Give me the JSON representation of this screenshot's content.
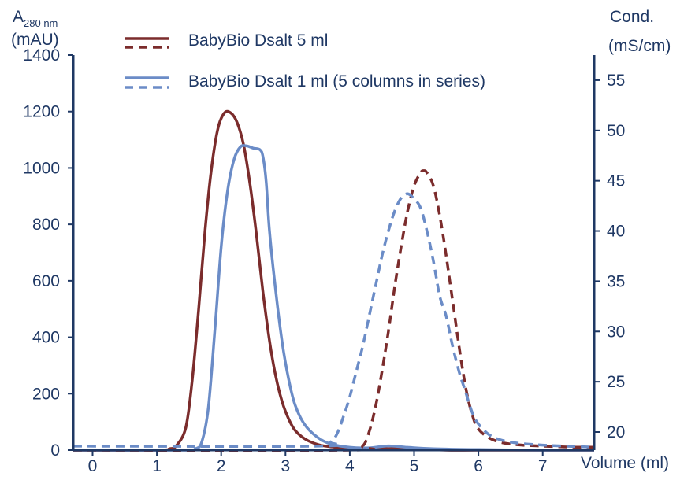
{
  "chart_data": {
    "type": "line",
    "title": "",
    "xlabel": "Volume (ml)",
    "ylabel_left": {
      "main": "A",
      "subscript": "280 nm",
      "unit": "(mAU)"
    },
    "ylabel_right": {
      "main": "Cond.",
      "unit": "(mS/cm)"
    },
    "xlim": [
      -0.3,
      7.8
    ],
    "ylim_left": [
      0,
      1400
    ],
    "ylim_right": [
      18.2,
      57.5
    ],
    "x_ticks": [
      0,
      1,
      2,
      3,
      4,
      5,
      6,
      7
    ],
    "y_left_ticks": [
      0,
      200,
      400,
      600,
      800,
      1000,
      1200,
      1400
    ],
    "y_right_ticks": [
      20,
      25,
      30,
      35,
      40,
      45,
      50,
      55
    ],
    "grid": false,
    "legend_position": "top-center",
    "legend": [
      {
        "label": "BabyBio Dsalt 5 ml",
        "color": "#7b2c2c"
      },
      {
        "label": "BabyBio Dsalt 1 ml (5 columns in series)",
        "color": "#6b8cc7"
      }
    ],
    "series": [
      {
        "group": "BabyBio Dsalt 5 ml",
        "measure": "A280",
        "axis": "left",
        "style": "solid",
        "color": "#7b2c2c",
        "points": [
          [
            -0.3,
            0
          ],
          [
            1.0,
            0
          ],
          [
            1.2,
            5
          ],
          [
            1.3,
            15
          ],
          [
            1.45,
            80
          ],
          [
            1.55,
            250
          ],
          [
            1.65,
            500
          ],
          [
            1.75,
            780
          ],
          [
            1.85,
            1000
          ],
          [
            1.95,
            1140
          ],
          [
            2.05,
            1195
          ],
          [
            2.15,
            1195
          ],
          [
            2.25,
            1160
          ],
          [
            2.35,
            1080
          ],
          [
            2.45,
            940
          ],
          [
            2.55,
            760
          ],
          [
            2.65,
            560
          ],
          [
            2.75,
            390
          ],
          [
            2.85,
            260
          ],
          [
            2.95,
            170
          ],
          [
            3.05,
            110
          ],
          [
            3.15,
            70
          ],
          [
            3.3,
            40
          ],
          [
            3.5,
            20
          ],
          [
            3.7,
            12
          ],
          [
            4.0,
            6
          ],
          [
            4.5,
            5
          ],
          [
            5.0,
            5
          ],
          [
            5.5,
            0
          ],
          [
            6.0,
            0
          ],
          [
            7.0,
            0
          ],
          [
            7.8,
            0
          ]
        ]
      },
      {
        "group": "BabyBio Dsalt 1 ml (5 columns in series)",
        "measure": "A280",
        "axis": "left",
        "style": "solid",
        "color": "#6b8cc7",
        "points": [
          [
            -0.3,
            0
          ],
          [
            1.4,
            0
          ],
          [
            1.6,
            5
          ],
          [
            1.7,
            30
          ],
          [
            1.8,
            150
          ],
          [
            1.9,
            420
          ],
          [
            2.0,
            720
          ],
          [
            2.1,
            920
          ],
          [
            2.2,
            1030
          ],
          [
            2.3,
            1075
          ],
          [
            2.4,
            1078
          ],
          [
            2.5,
            1070
          ],
          [
            2.6,
            1065
          ],
          [
            2.65,
            1040
          ],
          [
            2.7,
            950
          ],
          [
            2.75,
            780
          ],
          [
            2.85,
            560
          ],
          [
            2.95,
            380
          ],
          [
            3.05,
            250
          ],
          [
            3.15,
            160
          ],
          [
            3.3,
            90
          ],
          [
            3.5,
            45
          ],
          [
            3.7,
            22
          ],
          [
            4.0,
            10
          ],
          [
            4.3,
            8
          ],
          [
            4.6,
            15
          ],
          [
            4.9,
            10
          ],
          [
            5.3,
            5
          ],
          [
            6.0,
            2
          ],
          [
            7.0,
            0
          ],
          [
            7.8,
            0
          ]
        ]
      },
      {
        "group": "BabyBio Dsalt 5 ml",
        "measure": "Conductivity",
        "axis": "right",
        "style": "dashed",
        "color": "#7b2c2c",
        "points": [
          [
            -0.3,
            18.2
          ],
          [
            4.0,
            18.2
          ],
          [
            4.2,
            18.6
          ],
          [
            4.3,
            20
          ],
          [
            4.4,
            22.5
          ],
          [
            4.5,
            26
          ],
          [
            4.6,
            30
          ],
          [
            4.7,
            34.5
          ],
          [
            4.8,
            38.5
          ],
          [
            4.9,
            42
          ],
          [
            5.0,
            44.5
          ],
          [
            5.1,
            45.8
          ],
          [
            5.15,
            46
          ],
          [
            5.2,
            45.8
          ],
          [
            5.3,
            44.5
          ],
          [
            5.4,
            41.5
          ],
          [
            5.5,
            37.5
          ],
          [
            5.6,
            33
          ],
          [
            5.7,
            28.5
          ],
          [
            5.8,
            24.5
          ],
          [
            5.9,
            21.8
          ],
          [
            6.0,
            20.3
          ],
          [
            6.2,
            19.3
          ],
          [
            6.5,
            18.8
          ],
          [
            7.0,
            18.6
          ],
          [
            7.5,
            18.5
          ],
          [
            7.8,
            18.5
          ]
        ]
      },
      {
        "group": "BabyBio Dsalt 1 ml (5 columns in series)",
        "measure": "Conductivity",
        "axis": "right",
        "style": "dashed",
        "color": "#6b8cc7",
        "points": [
          [
            -0.3,
            18.6
          ],
          [
            3.5,
            18.6
          ],
          [
            3.7,
            19
          ],
          [
            3.8,
            19.8
          ],
          [
            3.9,
            21.5
          ],
          [
            4.0,
            23.5
          ],
          [
            4.1,
            26
          ],
          [
            4.2,
            28.5
          ],
          [
            4.3,
            31.5
          ],
          [
            4.4,
            34.5
          ],
          [
            4.5,
            37.5
          ],
          [
            4.6,
            40
          ],
          [
            4.7,
            42
          ],
          [
            4.8,
            43.3
          ],
          [
            4.9,
            43.7
          ],
          [
            5.0,
            43.2
          ],
          [
            5.1,
            42.3
          ],
          [
            5.2,
            40
          ],
          [
            5.3,
            37
          ],
          [
            5.4,
            33.5
          ],
          [
            5.5,
            31.5
          ],
          [
            5.6,
            28.5
          ],
          [
            5.7,
            26
          ],
          [
            5.8,
            24
          ],
          [
            5.9,
            22
          ],
          [
            6.0,
            20.8
          ],
          [
            6.2,
            19.6
          ],
          [
            6.5,
            19
          ],
          [
            7.0,
            18.7
          ],
          [
            7.8,
            18.5
          ]
        ]
      }
    ]
  }
}
